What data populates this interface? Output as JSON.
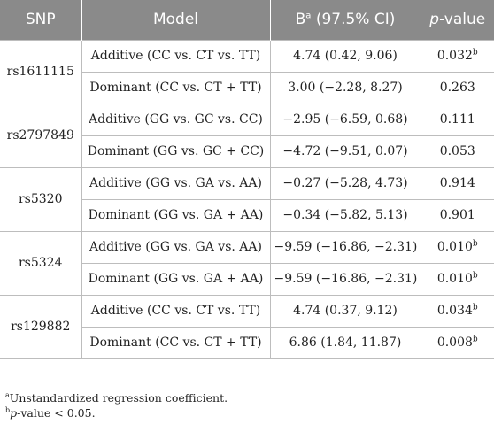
{
  "header": {
    "snp": "SNP",
    "model": "Model",
    "b_main": "B",
    "b_sup": "a",
    "b_rest": " (97.5% CI)",
    "p_italic": "p",
    "p_rest": "-value"
  },
  "groups": [
    {
      "snp": "rs1611115",
      "rows": [
        {
          "model": "Additive (CC vs. CT vs. TT)",
          "b": "4.74 (0.42, 9.06)",
          "p": "0.032",
          "p_sup": "b"
        },
        {
          "model": "Dominant (CC vs. CT + TT)",
          "b": "3.00 (−2.28, 8.27)",
          "p": "0.263",
          "p_sup": ""
        }
      ]
    },
    {
      "snp": "rs2797849",
      "rows": [
        {
          "model": "Additive (GG vs. GC vs. CC)",
          "b": "−2.95 (−6.59, 0.68)",
          "p": "0.111",
          "p_sup": ""
        },
        {
          "model": "Dominant (GG vs. GC + CC)",
          "b": "−4.72 (−9.51, 0.07)",
          "p": "0.053",
          "p_sup": ""
        }
      ]
    },
    {
      "snp": "rs5320",
      "rows": [
        {
          "model": "Additive (GG vs. GA vs. AA)",
          "b": "−0.27 (−5.28, 4.73)",
          "p": "0.914",
          "p_sup": ""
        },
        {
          "model": "Dominant (GG vs. GA + AA)",
          "b": "−0.34 (−5.82, 5.13)",
          "p": "0.901",
          "p_sup": ""
        }
      ]
    },
    {
      "snp": "rs5324",
      "rows": [
        {
          "model": "Additive (GG vs. GA vs. AA)",
          "b": "−9.59 (−16.86, −2.31)",
          "p": "0.010",
          "p_sup": "b"
        },
        {
          "model": "Dominant (GG vs. GA + AA)",
          "b": "−9.59 (−16.86, −2.31)",
          "p": "0.010",
          "p_sup": "b"
        }
      ]
    },
    {
      "snp": "rs129882",
      "rows": [
        {
          "model": "Additive (CC vs. CT vs. TT)",
          "b": "4.74 (0.37, 9.12)",
          "p": "0.034",
          "p_sup": "b"
        },
        {
          "model": "Dominant (CC vs. CT + TT)",
          "b": "6.86 (1.84, 11.87)",
          "p": "0.008",
          "p_sup": "b"
        }
      ]
    }
  ],
  "footnotes": {
    "a_mark": "a",
    "a_text": "Unstandardized regression coefficient.",
    "b_mark": "b",
    "b_italic": "p",
    "b_text": "-value < 0.05."
  }
}
